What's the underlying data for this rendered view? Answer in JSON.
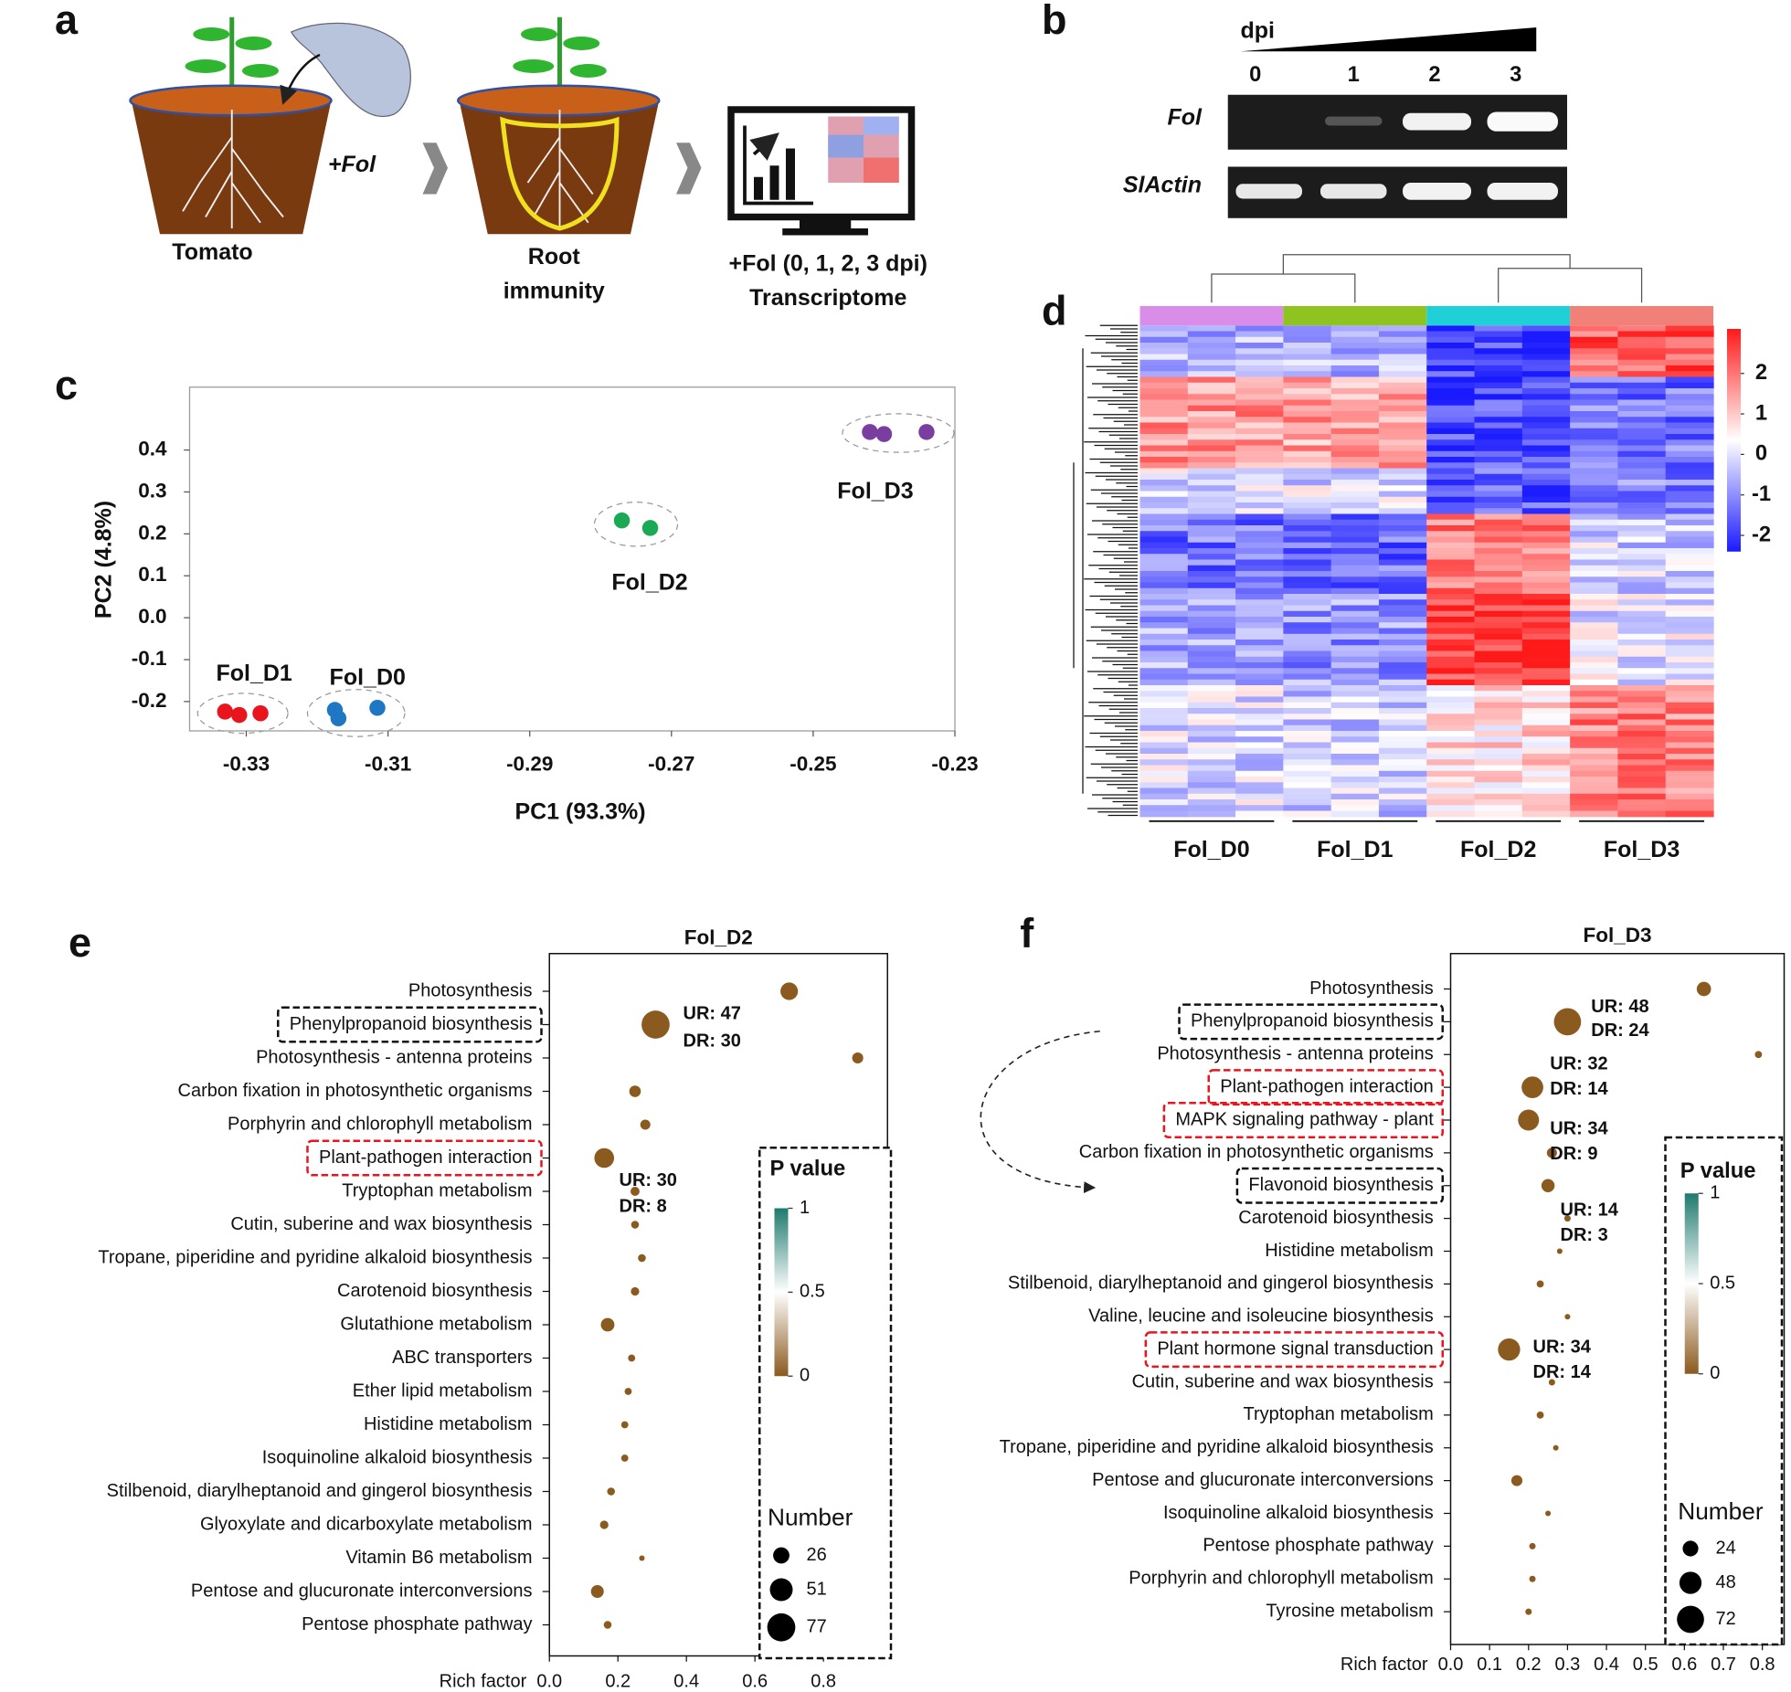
{
  "panel_a": {
    "label": "a",
    "tomato": "Tomato",
    "treatment": "+Fol",
    "root_immunity": [
      "Root",
      "immunity"
    ],
    "time_course": "+Fol (0, 1, 2, 3 dpi)",
    "transcriptome": "Transcriptome"
  },
  "panel_b": {
    "label": "b",
    "time_label": "dpi",
    "lanes": [
      "0",
      "1",
      "2",
      "3"
    ],
    "rows": [
      "Fol",
      "SlActin"
    ]
  },
  "chart_data": [
    {
      "type": "scatter",
      "panel_label": "c",
      "x_label": "PC1 (93.3%)",
      "y_label": "PC2 (4.8%)",
      "xlim": [
        -0.338,
        -0.23
      ],
      "ylim": [
        -0.27,
        0.55
      ],
      "xticks": [
        -0.33,
        -0.31,
        -0.29,
        -0.27,
        -0.25,
        -0.23
      ],
      "yticks": [
        -0.2,
        -0.1,
        {
          "value": 0,
          "label": "0.0"
        },
        0.1,
        0.2,
        0.3,
        0.4
      ],
      "series": [
        {
          "name": "Fol_D0",
          "color": "#1f77c4",
          "x": [
            -0.3175,
            -0.317,
            -0.3115
          ],
          "y": [
            -0.22,
            -0.24,
            -0.215
          ]
        },
        {
          "name": "Fol_D1",
          "color": "#e8141e",
          "x": [
            -0.333,
            -0.331,
            -0.328
          ],
          "y": [
            -0.224,
            -0.232,
            -0.228
          ]
        },
        {
          "name": "Fol_D2",
          "color": "#1aaa55",
          "x": [
            -0.277,
            -0.273
          ],
          "y": [
            0.232,
            0.214
          ]
        },
        {
          "name": "Fol_D3",
          "color": "#7a3ea0",
          "x": [
            -0.242,
            -0.24,
            -0.234
          ],
          "y": [
            0.443,
            0.438,
            0.443
          ]
        }
      ]
    },
    {
      "type": "heatmap",
      "panel_label": "d",
      "categories": [
        "Fol_D0",
        "Fol_D1",
        "Fol_D2",
        "Fol_D3"
      ],
      "category_colors": [
        "#d98ce8",
        "#8fc31f",
        "#1fd0d8",
        "#f08078"
      ],
      "colorbar_lim": [
        -2.4,
        3.1
      ],
      "colorbar_ticks": [
        2,
        1,
        0,
        -1,
        -2
      ],
      "colorbar_colors": [
        "#1a1aff",
        "#ffffff",
        "#ff1a1a"
      ]
    },
    {
      "type": "bubble",
      "panel_label": "e",
      "title": "Fol_D2",
      "x_label": "Rich factor",
      "color": "#8b5a1e",
      "xlim": [
        0,
        0.987
      ],
      "xticks": [
        {
          "value": 0,
          "label": "0.0"
        },
        0.2,
        0.4,
        0.6,
        0.8
      ],
      "categories": [
        "Photosynthesis",
        "Phenylpropanoid biosynthesis",
        "Photosynthesis - antenna proteins",
        "Carbon fixation in photosynthetic organisms",
        "Porphyrin and chlorophyll metabolism",
        "Plant-pathogen interaction",
        "Tryptophan metabolism",
        "Cutin, suberine and wax biosynthesis",
        "Tropane, piperidine and pyridine alkaloid biosynthesis",
        "Carotenoid biosynthesis",
        "Glutathione metabolism",
        "ABC transporters",
        "Ether lipid metabolism",
        "Histidine metabolism",
        "Isoquinoline alkaloid biosynthesis",
        "Stilbenoid, diarylheptanoid and gingerol biosynthesis",
        "Glyoxylate and dicarboxylate metabolism",
        "Vitamin B6 metabolism",
        "Pentose and glucuronate interconversions",
        "Pentose phosphate pathway"
      ],
      "values": [
        0.7,
        0.31,
        0.9,
        0.25,
        0.28,
        0.16,
        0.25,
        0.25,
        0.27,
        0.25,
        0.17,
        0.24,
        0.23,
        0.22,
        0.22,
        0.18,
        0.16,
        0.27,
        0.14,
        0.17
      ],
      "sizes": [
        30,
        77,
        12,
        13,
        10,
        38,
        8,
        6,
        6,
        7,
        18,
        5,
        5,
        5,
        5,
        6,
        7,
        3,
        16,
        6
      ],
      "boxed_black": [
        1
      ],
      "boxed_red": [
        5
      ],
      "annotations": [
        "UR: 47",
        "DR: 30",
        "UR: 30",
        "DR: 8"
      ],
      "colorbar_title": "P value",
      "colorbar_ticks": [
        1,
        0.5,
        0
      ],
      "colorbar_colors": [
        "#8b5a1e",
        "#ffffff",
        "#1e7a6e"
      ],
      "size_legend_title": "Number",
      "size_legend": [
        26,
        51,
        77
      ]
    },
    {
      "type": "bubble",
      "panel_label": "f",
      "title": "Fol_D3",
      "x_label": "Rich factor",
      "color": "#8b5a1e",
      "xlim": [
        0,
        0.856
      ],
      "xticks": [
        {
          "value": 0,
          "label": "0.0"
        },
        0.1,
        0.2,
        0.3,
        0.4,
        0.5,
        0.6,
        0.7,
        0.8
      ],
      "categories": [
        "Photosynthesis",
        "Phenylpropanoid biosynthesis",
        "Photosynthesis - antenna proteins",
        "Plant-pathogen interaction",
        "MAPK signaling pathway - plant",
        "Carbon fixation in photosynthetic organisms",
        "Flavonoid biosynthesis",
        "Carotenoid biosynthesis",
        "Histidine metabolism",
        "Stilbenoid, diarylheptanoid and gingerol biosynthesis",
        "Valine, leucine and isoleucine biosynthesis",
        "Plant hormone signal transduction",
        "Cutin, suberine and wax biosynthesis",
        "Tryptophan metabolism",
        "Tropane, piperidine and pyridine alkaloid biosynthesis",
        "Pentose and glucuronate interconversions",
        "Isoquinoline alkaloid biosynthesis",
        "Pentose phosphate pathway",
        "Porphyrin and chlorophyll metabolism",
        "Tyrosine metabolism"
      ],
      "values": [
        0.65,
        0.3,
        0.79,
        0.21,
        0.2,
        0.26,
        0.25,
        0.3,
        0.28,
        0.23,
        0.3,
        0.15,
        0.26,
        0.23,
        0.27,
        0.17,
        0.25,
        0.21,
        0.21,
        0.2
      ],
      "sizes": [
        20,
        72,
        5,
        46,
        43,
        10,
        17,
        4,
        3,
        5,
        3,
        48,
        4,
        5,
        3,
        12,
        3,
        4,
        4,
        4
      ],
      "boxed_black": [
        1,
        6
      ],
      "boxed_red": [
        3,
        4,
        11
      ],
      "annotations": [
        "UR: 48",
        "DR: 24",
        "UR: 32",
        "DR: 14",
        "UR: 34",
        "DR: 9",
        "UR: 14",
        "DR: 3",
        "UR: 34",
        "DR: 14"
      ],
      "colorbar_title": "P value",
      "colorbar_ticks": [
        1,
        0.5,
        0
      ],
      "colorbar_colors": [
        "#8b5a1e",
        "#ffffff",
        "#1e7a6e"
      ],
      "size_legend_title": "Number",
      "size_legend": [
        24,
        48,
        72
      ]
    }
  ]
}
